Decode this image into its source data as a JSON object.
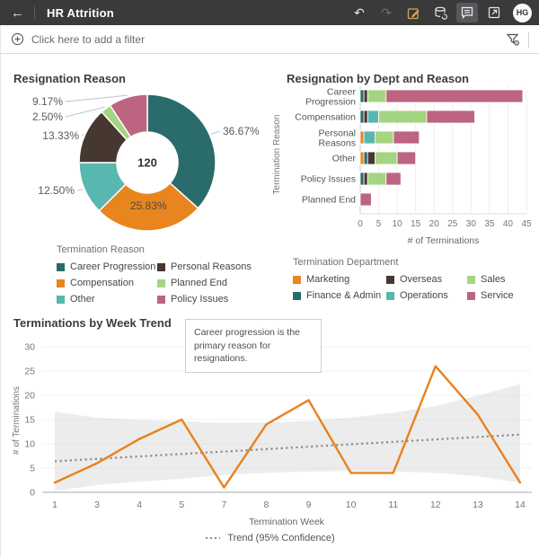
{
  "header": {
    "title": "HR Attrition",
    "avatar": "HG",
    "icons": {
      "back": "←",
      "undo": "↶",
      "redo": "↷"
    }
  },
  "filter_bar": {
    "add_filter_label": "Click here to add a filter"
  },
  "colors": {
    "header_bg": "#3a3a3a",
    "accent_orange": "#e8821e",
    "edit_icon": "#d9a556",
    "reason": {
      "Career Progression": "#2a6b6b",
      "Compensation": "#e8851e",
      "Other": "#58b7ae",
      "Personal Reasons": "#463831",
      "Planned End": "#a5d582",
      "Policy Issues": "#bd6480"
    },
    "dept": {
      "Marketing": "#e8851e",
      "Overseas": "#463831",
      "Sales": "#a5d582",
      "Finance & Admin": "#2a6b6b",
      "Operations": "#58b7ae",
      "Service": "#bd6480"
    }
  },
  "chart_data": [
    {
      "type": "pie",
      "title": "Resignation Reason",
      "center_total": "120",
      "legend_title": "Termination Reason",
      "slices": [
        {
          "label": "Career Progression",
          "pct": 36.67,
          "display": "36.67%"
        },
        {
          "label": "Compensation",
          "pct": 25.83,
          "display": "25.83%"
        },
        {
          "label": "Other",
          "pct": 12.5,
          "display": "12.50%"
        },
        {
          "label": "Personal Reasons",
          "pct": 13.33,
          "display": "13.33%"
        },
        {
          "label": "Planned End",
          "pct": 2.5,
          "display": "2.50%"
        },
        {
          "label": "Policy Issues",
          "pct": 9.17,
          "display": "9.17%"
        }
      ],
      "legend_columns": [
        [
          "Career Progression",
          "Compensation",
          "Other"
        ],
        [
          "Personal Reasons",
          "Planned End",
          "Policy Issues"
        ]
      ]
    },
    {
      "type": "bar",
      "orientation": "horizontal",
      "stacked": true,
      "title": "Resignation by Dept and Reason",
      "categories": [
        "Career Progression",
        "Compensation",
        "Personal Reasons",
        "Other",
        "Policy Issues",
        "Planned End"
      ],
      "stack_order": [
        "Marketing",
        "Finance & Admin",
        "Overseas",
        "Operations",
        "Sales",
        "Service"
      ],
      "series": [
        {
          "name": "Marketing",
          "values": [
            0,
            0,
            1,
            1,
            0,
            0
          ]
        },
        {
          "name": "Finance & Admin",
          "values": [
            1,
            1,
            0,
            1,
            1,
            0
          ]
        },
        {
          "name": "Overseas",
          "values": [
            1,
            1,
            0,
            2,
            1,
            0
          ]
        },
        {
          "name": "Operations",
          "values": [
            0,
            3,
            3,
            0,
            0,
            0
          ]
        },
        {
          "name": "Sales",
          "values": [
            5,
            13,
            5,
            6,
            5,
            0
          ]
        },
        {
          "name": "Service",
          "values": [
            37,
            13,
            7,
            5,
            4,
            3
          ]
        }
      ],
      "totals": [
        44,
        31,
        16,
        15,
        11,
        3
      ],
      "xlim": [
        0,
        45
      ],
      "xticks": [
        0,
        5,
        10,
        15,
        20,
        25,
        30,
        35,
        40,
        45
      ],
      "xlabel": "# of Terminations",
      "ylabel": "Termination Reason",
      "legend_title": "Termination Department",
      "legend_columns": [
        [
          "Marketing",
          "Finance & Admin"
        ],
        [
          "Overseas",
          "Operations"
        ],
        [
          "Sales",
          "Service"
        ]
      ]
    },
    {
      "type": "line",
      "title": "Terminations by Week Trend",
      "x": [
        1,
        3,
        4,
        5,
        7,
        8,
        9,
        10,
        11,
        12,
        13,
        14
      ],
      "values": [
        2,
        6,
        11,
        15,
        1,
        14,
        19,
        4,
        4,
        26,
        16,
        2
      ],
      "ylim": [
        0,
        30
      ],
      "yticks": [
        0,
        5,
        10,
        15,
        20,
        25,
        30
      ],
      "xlabel": "Termination Week",
      "ylabel": "# of Terminations",
      "annotation": "Career progression is the primary reason for resignations.",
      "trend": {
        "start": 6.4,
        "end": 11.9
      },
      "band_top": [
        16.6,
        15.4,
        14.9,
        14.6,
        14.3,
        14.4,
        14.7,
        15.4,
        16.4,
        17.8,
        19.9,
        22.3
      ],
      "band_bottom": [
        0.3,
        1.5,
        2.2,
        2.8,
        3.6,
        4.0,
        4.3,
        4.4,
        4.3,
        4.0,
        3.3,
        2.0
      ],
      "legend_label": "Trend (95% Confidence)"
    }
  ]
}
